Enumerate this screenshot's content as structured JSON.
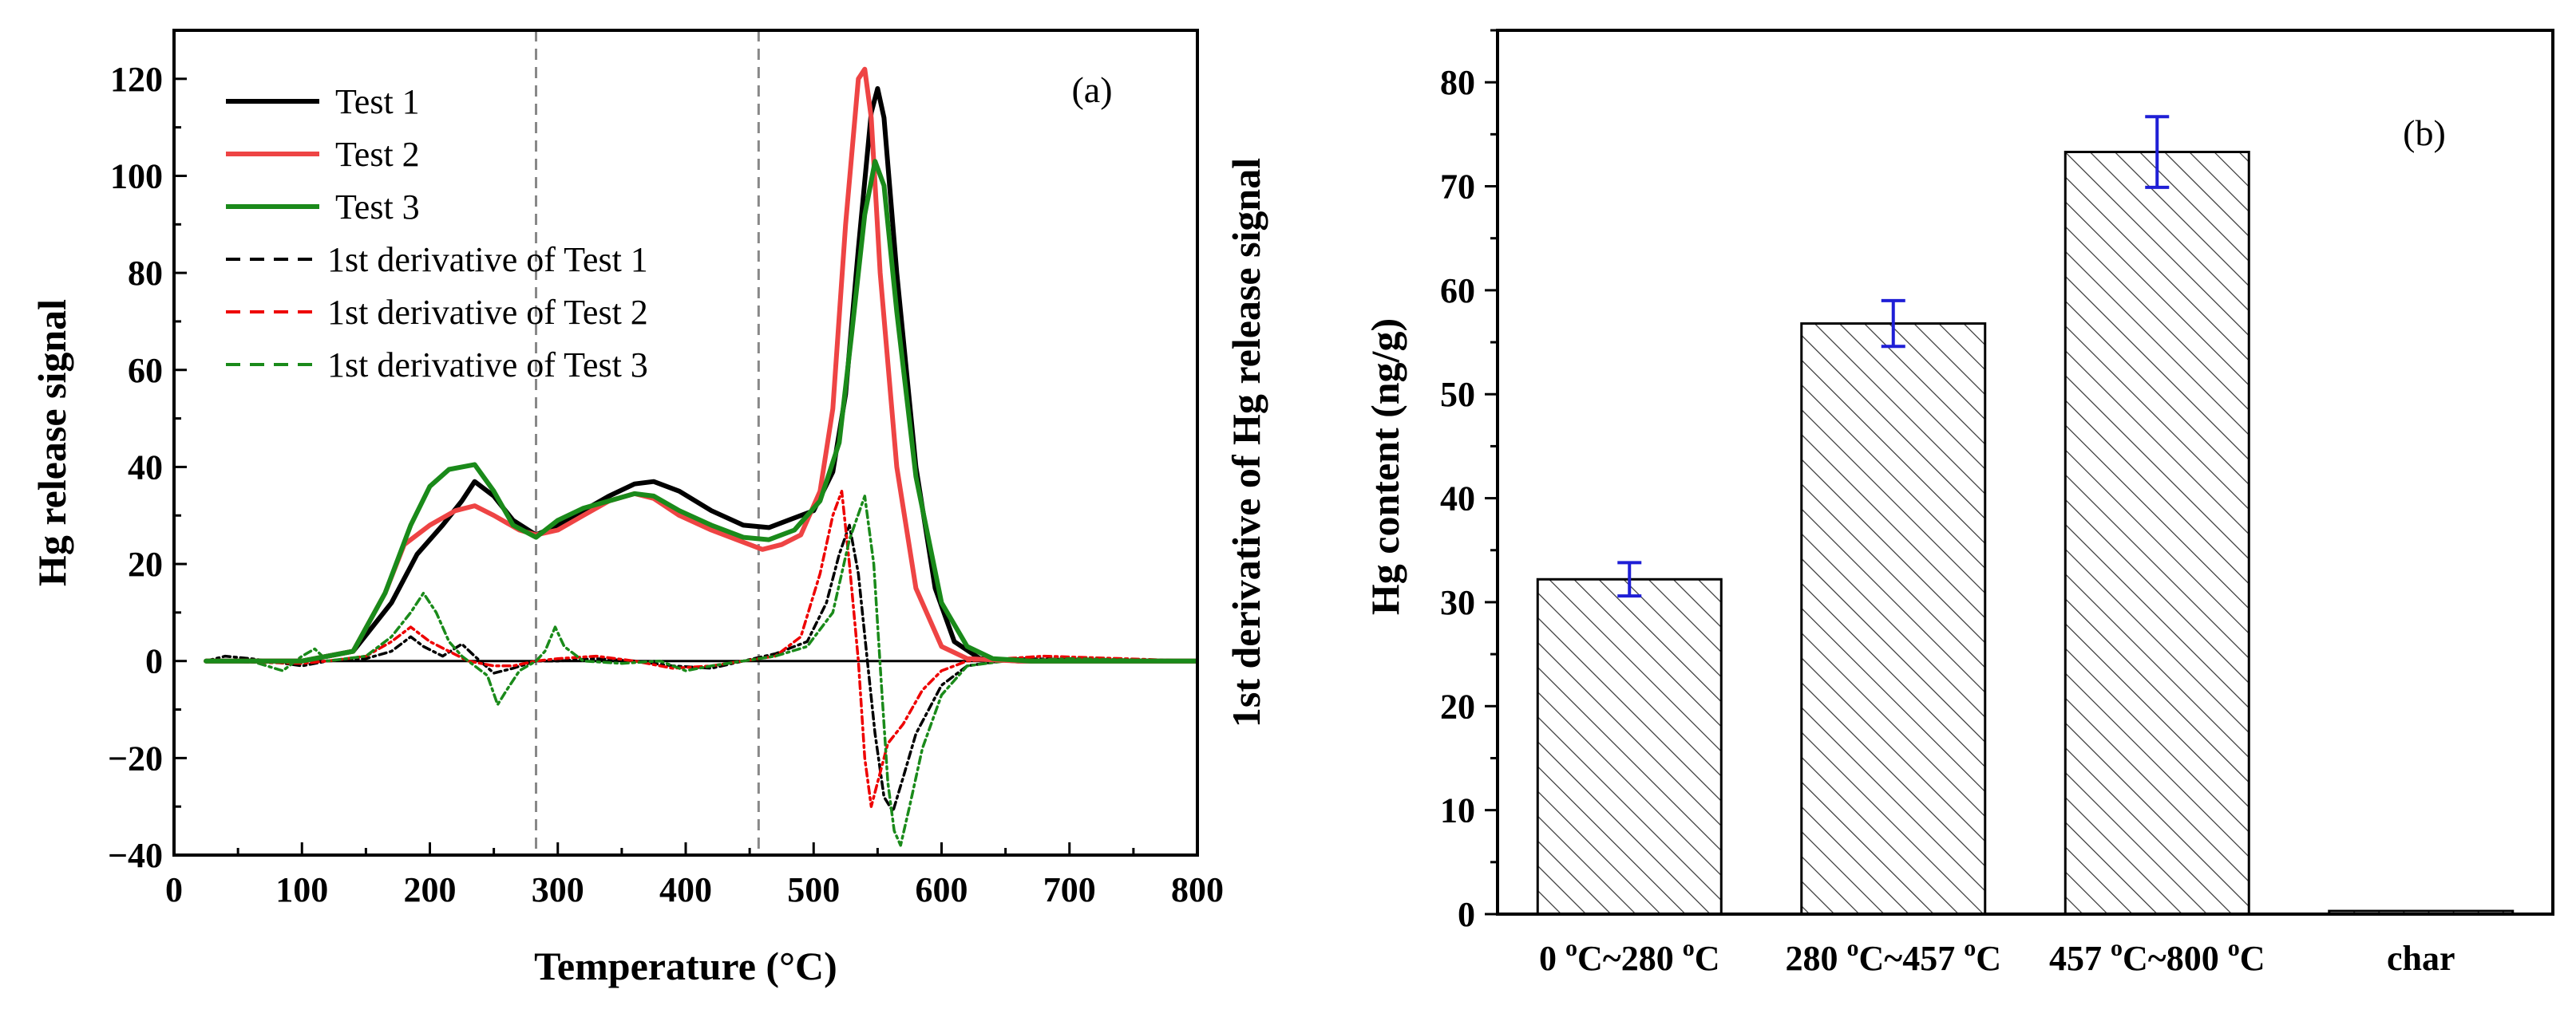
{
  "chart_data": [
    {
      "type": "line",
      "panel": "(a)",
      "xlabel": "Temperature (°C)",
      "ylabel": "Hg release signal",
      "ylabel_right": "1st derivative of Hg release signal",
      "xlim": [
        0,
        800
      ],
      "ylim": [
        -40,
        130
      ],
      "x_ticks": [
        "0",
        "100",
        "200",
        "300",
        "400",
        "500",
        "600",
        "700",
        "800"
      ],
      "y_ticks": [
        "−40",
        "−20",
        "0",
        "20",
        "40",
        "60",
        "80",
        "100",
        "120"
      ],
      "vlines": [
        283,
        457
      ],
      "hline": 0,
      "colors": {
        "Test 1": "#000000",
        "Test 2": "#ee4444",
        "Test 3": "#1a8a1a"
      },
      "series": [
        {
          "name": "Test 1",
          "style": "solid",
          "color": "#000000",
          "points": [
            [
              25,
              0
            ],
            [
              100,
              0
            ],
            [
              140,
              2
            ],
            [
              170,
              12
            ],
            [
              190,
              22
            ],
            [
              210,
              28
            ],
            [
              225,
              33
            ],
            [
              235,
              37
            ],
            [
              250,
              34
            ],
            [
              265,
              29
            ],
            [
              283,
              26
            ],
            [
              300,
              28
            ],
            [
              320,
              31
            ],
            [
              340,
              34
            ],
            [
              360,
              36.5
            ],
            [
              375,
              37
            ],
            [
              395,
              35
            ],
            [
              420,
              31
            ],
            [
              445,
              28
            ],
            [
              465,
              27.5
            ],
            [
              480,
              29
            ],
            [
              500,
              31
            ],
            [
              515,
              39
            ],
            [
              525,
              55
            ],
            [
              535,
              85
            ],
            [
              545,
              113
            ],
            [
              550,
              118
            ],
            [
              555,
              112
            ],
            [
              565,
              80
            ],
            [
              580,
              40
            ],
            [
              595,
              15
            ],
            [
              610,
              4
            ],
            [
              630,
              0.5
            ],
            [
              660,
              0
            ],
            [
              800,
              0
            ]
          ]
        },
        {
          "name": "Test 2",
          "style": "solid",
          "color": "#ee4444",
          "points": [
            [
              25,
              0
            ],
            [
              100,
              0
            ],
            [
              140,
              2
            ],
            [
              165,
              14
            ],
            [
              180,
              24
            ],
            [
              200,
              28
            ],
            [
              220,
              31
            ],
            [
              235,
              32
            ],
            [
              250,
              30
            ],
            [
              270,
              27
            ],
            [
              283,
              26
            ],
            [
              300,
              27
            ],
            [
              320,
              30
            ],
            [
              340,
              33
            ],
            [
              360,
              34.5
            ],
            [
              375,
              33.5
            ],
            [
              395,
              30
            ],
            [
              420,
              27
            ],
            [
              445,
              24.5
            ],
            [
              460,
              23
            ],
            [
              475,
              24
            ],
            [
              490,
              26
            ],
            [
              505,
              35
            ],
            [
              515,
              52
            ],
            [
              525,
              90
            ],
            [
              535,
              120
            ],
            [
              540,
              122
            ],
            [
              545,
              112
            ],
            [
              552,
              80
            ],
            [
              565,
              40
            ],
            [
              580,
              15
            ],
            [
              600,
              3
            ],
            [
              620,
              0.5
            ],
            [
              660,
              0
            ],
            [
              800,
              0
            ]
          ]
        },
        {
          "name": "Test 3",
          "style": "solid",
          "color": "#1a8a1a",
          "points": [
            [
              25,
              0
            ],
            [
              100,
              0
            ],
            [
              140,
              2
            ],
            [
              165,
              14
            ],
            [
              185,
              28
            ],
            [
              200,
              36
            ],
            [
              215,
              39.5
            ],
            [
              235,
              40.5
            ],
            [
              250,
              35
            ],
            [
              265,
              28
            ],
            [
              283,
              25.5
            ],
            [
              300,
              29
            ],
            [
              320,
              31.5
            ],
            [
              340,
              33
            ],
            [
              360,
              34.5
            ],
            [
              375,
              34
            ],
            [
              395,
              31
            ],
            [
              420,
              28
            ],
            [
              445,
              25.5
            ],
            [
              465,
              25
            ],
            [
              485,
              27
            ],
            [
              505,
              33
            ],
            [
              520,
              45
            ],
            [
              530,
              68
            ],
            [
              540,
              92
            ],
            [
              548,
              103
            ],
            [
              555,
              98
            ],
            [
              565,
              72
            ],
            [
              580,
              38
            ],
            [
              600,
              12
            ],
            [
              620,
              3
            ],
            [
              640,
              0.5
            ],
            [
              670,
              0
            ],
            [
              800,
              0
            ]
          ]
        },
        {
          "name": "1st derivative of Test 1",
          "style": "dashed",
          "color": "#000000",
          "points": [
            [
              25,
              0
            ],
            [
              40,
              1
            ],
            [
              60,
              0.5
            ],
            [
              100,
              -1
            ],
            [
              120,
              0
            ],
            [
              150,
              0.5
            ],
            [
              170,
              2
            ],
            [
              185,
              5
            ],
            [
              195,
              3
            ],
            [
              210,
              1
            ],
            [
              225,
              3.5
            ],
            [
              235,
              1
            ],
            [
              250,
              -2.5
            ],
            [
              265,
              -1.5
            ],
            [
              283,
              0
            ],
            [
              300,
              0
            ],
            [
              330,
              0.5
            ],
            [
              360,
              0
            ],
            [
              390,
              -1
            ],
            [
              420,
              -1.5
            ],
            [
              445,
              0
            ],
            [
              470,
              1.5
            ],
            [
              495,
              4
            ],
            [
              510,
              12
            ],
            [
              520,
              22
            ],
            [
              528,
              28
            ],
            [
              535,
              18
            ],
            [
              542,
              0
            ],
            [
              548,
              -15
            ],
            [
              555,
              -28
            ],
            [
              562,
              -31
            ],
            [
              570,
              -24
            ],
            [
              580,
              -15
            ],
            [
              600,
              -5
            ],
            [
              620,
              -1
            ],
            [
              660,
              0.5
            ],
            [
              800,
              0
            ]
          ]
        },
        {
          "name": "1st derivative of Test 2",
          "style": "dashed",
          "color": "#ee0000",
          "points": [
            [
              25,
              0
            ],
            [
              100,
              -0.5
            ],
            [
              120,
              0
            ],
            [
              150,
              1
            ],
            [
              170,
              4
            ],
            [
              185,
              7
            ],
            [
              200,
              4
            ],
            [
              215,
              2
            ],
            [
              230,
              0
            ],
            [
              250,
              -1
            ],
            [
              265,
              -1
            ],
            [
              283,
              0
            ],
            [
              300,
              0.5
            ],
            [
              330,
              1
            ],
            [
              360,
              0
            ],
            [
              390,
              -1.5
            ],
            [
              420,
              -1
            ],
            [
              445,
              0
            ],
            [
              470,
              1
            ],
            [
              490,
              5
            ],
            [
              505,
              18
            ],
            [
              515,
              30
            ],
            [
              522,
              35
            ],
            [
              528,
              20
            ],
            [
              535,
              0
            ],
            [
              540,
              -20
            ],
            [
              545,
              -30
            ],
            [
              550,
              -25
            ],
            [
              558,
              -17
            ],
            [
              570,
              -13
            ],
            [
              585,
              -6
            ],
            [
              600,
              -2
            ],
            [
              620,
              0
            ],
            [
              680,
              1
            ],
            [
              800,
              0
            ]
          ]
        },
        {
          "name": "1st derivative of Test 3",
          "style": "dashed",
          "color": "#1a8a1a",
          "points": [
            [
              25,
              0
            ],
            [
              60,
              0
            ],
            [
              85,
              -2
            ],
            [
              100,
              1
            ],
            [
              110,
              2.5
            ],
            [
              120,
              0
            ],
            [
              150,
              1
            ],
            [
              170,
              5
            ],
            [
              185,
              10
            ],
            [
              195,
              14
            ],
            [
              205,
              10
            ],
            [
              215,
              4
            ],
            [
              225,
              1
            ],
            [
              235,
              -1
            ],
            [
              245,
              -3
            ],
            [
              253,
              -9
            ],
            [
              260,
              -6
            ],
            [
              270,
              -2
            ],
            [
              283,
              0
            ],
            [
              290,
              2
            ],
            [
              298,
              7
            ],
            [
              305,
              3
            ],
            [
              320,
              0
            ],
            [
              350,
              -0.5
            ],
            [
              380,
              0
            ],
            [
              400,
              -2
            ],
            [
              420,
              -1
            ],
            [
              445,
              0
            ],
            [
              470,
              1
            ],
            [
              495,
              3
            ],
            [
              515,
              10
            ],
            [
              528,
              25
            ],
            [
              540,
              34
            ],
            [
              547,
              20
            ],
            [
              553,
              -5
            ],
            [
              558,
              -25
            ],
            [
              563,
              -35
            ],
            [
              568,
              -38
            ],
            [
              575,
              -30
            ],
            [
              585,
              -18
            ],
            [
              600,
              -7
            ],
            [
              620,
              -1
            ],
            [
              650,
              0
            ],
            [
              700,
              0.5
            ],
            [
              800,
              0
            ]
          ]
        }
      ]
    },
    {
      "type": "bar",
      "panel": "(b)",
      "xlabel": "",
      "ylabel": "Hg content (ng/g)",
      "ylim": [
        0,
        85
      ],
      "y_ticks": [
        "0",
        "10",
        "20",
        "30",
        "40",
        "50",
        "60",
        "70",
        "80"
      ],
      "categories": [
        "0 °C~280 °C",
        "280 °C~457 °C",
        "457 °C~800 °C",
        "char"
      ],
      "category_parts": [
        {
          "a": "0 ",
          "b": "C~280 ",
          "c": "C"
        },
        {
          "a": "280 ",
          "b": "C~457 ",
          "c": "C"
        },
        {
          "a": "457 ",
          "b": "C~800 ",
          "c": "C"
        },
        {
          "a": "char",
          "b": "",
          "c": ""
        }
      ],
      "degree_symbol": "o",
      "values": [
        32.2,
        56.8,
        73.3,
        0.3
      ],
      "errors": [
        1.6,
        2.2,
        3.4,
        0
      ],
      "bar_pattern": "diagonal-hatch",
      "error_bar_color": "#1f1fd6"
    }
  ]
}
